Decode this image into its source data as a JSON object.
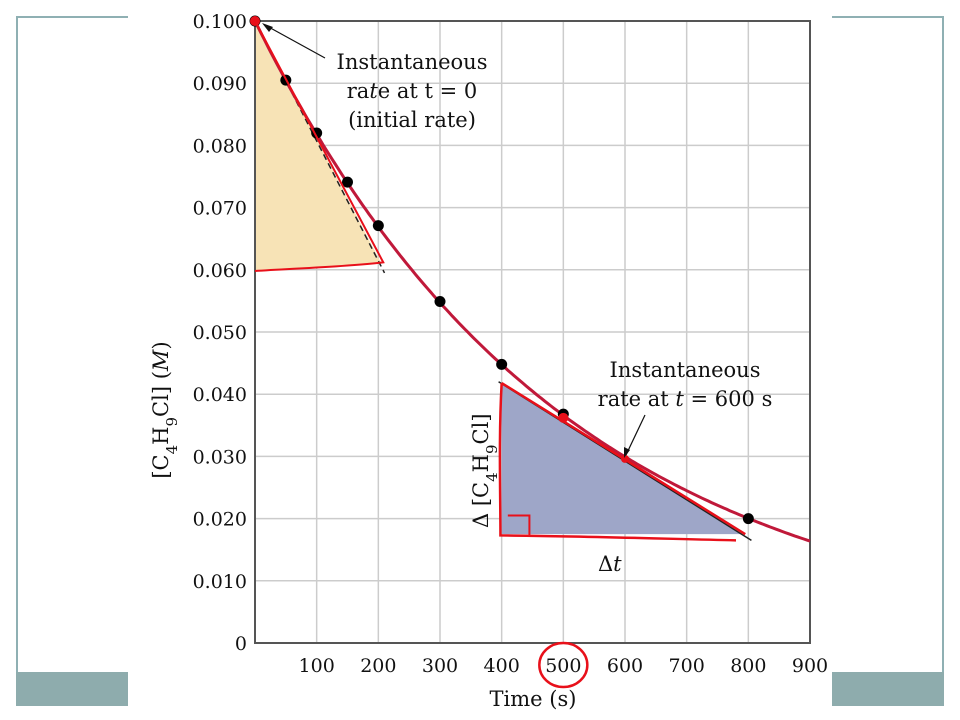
{
  "chart_data": {
    "type": "line",
    "xlabel": "Time (s)",
    "ylabel": "[C4H9Cl] (M)",
    "xlim": [
      0,
      900
    ],
    "ylim": [
      0,
      0.1
    ],
    "x_ticks": [
      "100",
      "200",
      "300",
      "400",
      "500",
      "600",
      "700",
      "800",
      "900"
    ],
    "y_ticks": [
      "0",
      "0.010",
      "0.020",
      "0.030",
      "0.040",
      "0.050",
      "0.060",
      "0.070",
      "0.080",
      "0.090",
      "0.100"
    ],
    "series": [
      {
        "x": [
          0,
          50,
          100,
          150,
          200,
          300,
          400,
          500,
          800
        ],
        "y": [
          0.1,
          0.0905,
          0.082,
          0.0741,
          0.0671,
          0.0549,
          0.0448,
          0.0368,
          0.02
        ]
      }
    ],
    "grid": true,
    "annotations": {
      "initial_rate": [
        "Instantaneous",
        "rate at t = 0",
        "(initial rate)"
      ],
      "rate_600": [
        "Instantaneous",
        "rate at t = 600 s"
      ],
      "delta_c": "Δ [C4H9Cl]",
      "delta_t": "Δt"
    }
  },
  "colors": {
    "curve": "#c0193a",
    "tangent_fill_initial": "#f7e3b6",
    "tangent_fill_600": "#9ea6c8",
    "ink_red": "#e8101a",
    "grid": "#cccccc",
    "frame": "#8eacad"
  }
}
